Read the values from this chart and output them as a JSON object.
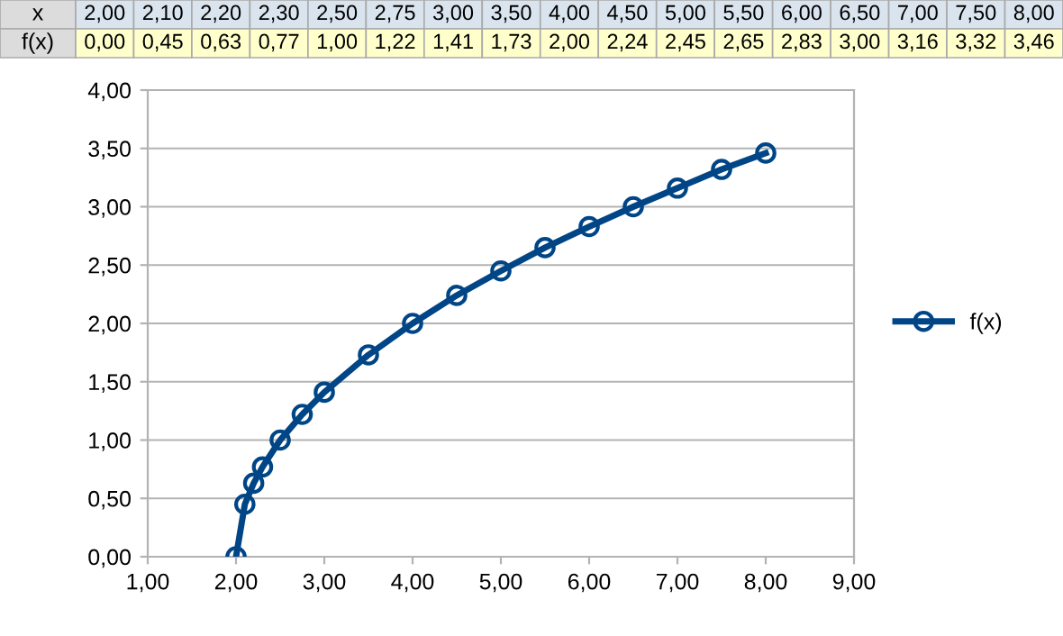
{
  "chart_data": {
    "type": "line",
    "x": [
      2.0,
      2.1,
      2.2,
      2.3,
      2.5,
      2.75,
      3.0,
      3.5,
      4.0,
      4.5,
      5.0,
      5.5,
      6.0,
      6.5,
      7.0,
      7.5,
      8.0
    ],
    "series": [
      {
        "name": "f(x)",
        "color": "#004586",
        "values": [
          0.0,
          0.45,
          0.63,
          0.77,
          1.0,
          1.22,
          1.41,
          1.73,
          2.0,
          2.24,
          2.45,
          2.65,
          2.83,
          3.0,
          3.16,
          3.32,
          3.46
        ]
      }
    ],
    "annotations": [
      "x",
      "2,00",
      "2,10",
      "2,20",
      "2,30",
      "2,50",
      "2,75",
      "3,00",
      "3,50",
      "4,00",
      "4,50",
      "5,00",
      "5,50",
      "6,00",
      "6,50",
      "7,00",
      "7,50",
      "8,00",
      "0,00",
      "0,45",
      "0,63",
      "0,77",
      "1,00",
      "1,22",
      "1,41",
      "1,73",
      "2,00",
      "2,24",
      "2,45",
      "2,65",
      "2,83",
      "3,00",
      "3,16",
      "3,32",
      "3,46"
    ],
    "xlim": [
      1,
      9
    ],
    "xticks": [
      {
        "value": 1,
        "label": "1,00"
      },
      {
        "value": 2,
        "label": "2,00"
      },
      {
        "value": 3,
        "label": "3,00"
      },
      {
        "value": 4,
        "label": "4,00"
      },
      {
        "value": 5,
        "label": "5,00"
      },
      {
        "value": 6,
        "label": "6,00"
      },
      {
        "value": 7,
        "label": "7,00"
      },
      {
        "value": 8,
        "label": "8,00"
      },
      {
        "value": 9,
        "label": "9,00"
      }
    ],
    "ylim": [
      0,
      4
    ],
    "yticks": [
      {
        "value": 0,
        "label": "0,00"
      },
      {
        "value": 0.5,
        "label": "0,50"
      },
      {
        "value": 1,
        "label": "1,00"
      },
      {
        "value": 1.5,
        "label": "1,50"
      },
      {
        "value": 2,
        "label": "2,00"
      },
      {
        "value": 2.5,
        "label": "2,50"
      },
      {
        "value": 3,
        "label": "3,00"
      },
      {
        "value": 3.5,
        "label": "3,50"
      },
      {
        "value": 4,
        "label": "4,00"
      }
    ],
    "grid": "y",
    "legend": "right",
    "marker": "circle",
    "line_style": "solid"
  }
}
